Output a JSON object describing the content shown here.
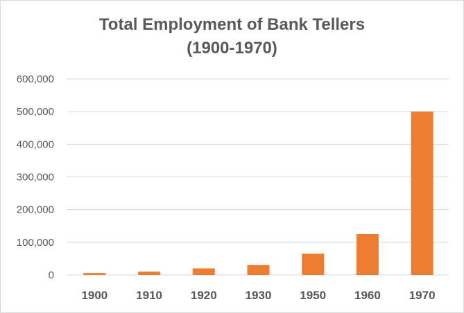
{
  "chart_data": {
    "type": "bar",
    "title_line1": "Total Employment of Bank Tellers",
    "title_line2": "(1900-1970)",
    "categories": [
      "1900",
      "1910",
      "1920",
      "1930",
      "1950",
      "1960",
      "1970"
    ],
    "values": [
      6000,
      10000,
      20000,
      30000,
      65000,
      125000,
      500000
    ],
    "ylim": [
      0,
      600000
    ],
    "yticks": [
      0,
      100000,
      200000,
      300000,
      400000,
      500000,
      600000
    ],
    "ytick_labels": [
      "0",
      "100,000",
      "200,000",
      "300,000",
      "400,000",
      "500,000",
      "600,000"
    ],
    "grid": true,
    "legend": "none",
    "bar_color": "#ed7d31",
    "grid_color": "#d9d9d9",
    "text_color": "#595959"
  }
}
